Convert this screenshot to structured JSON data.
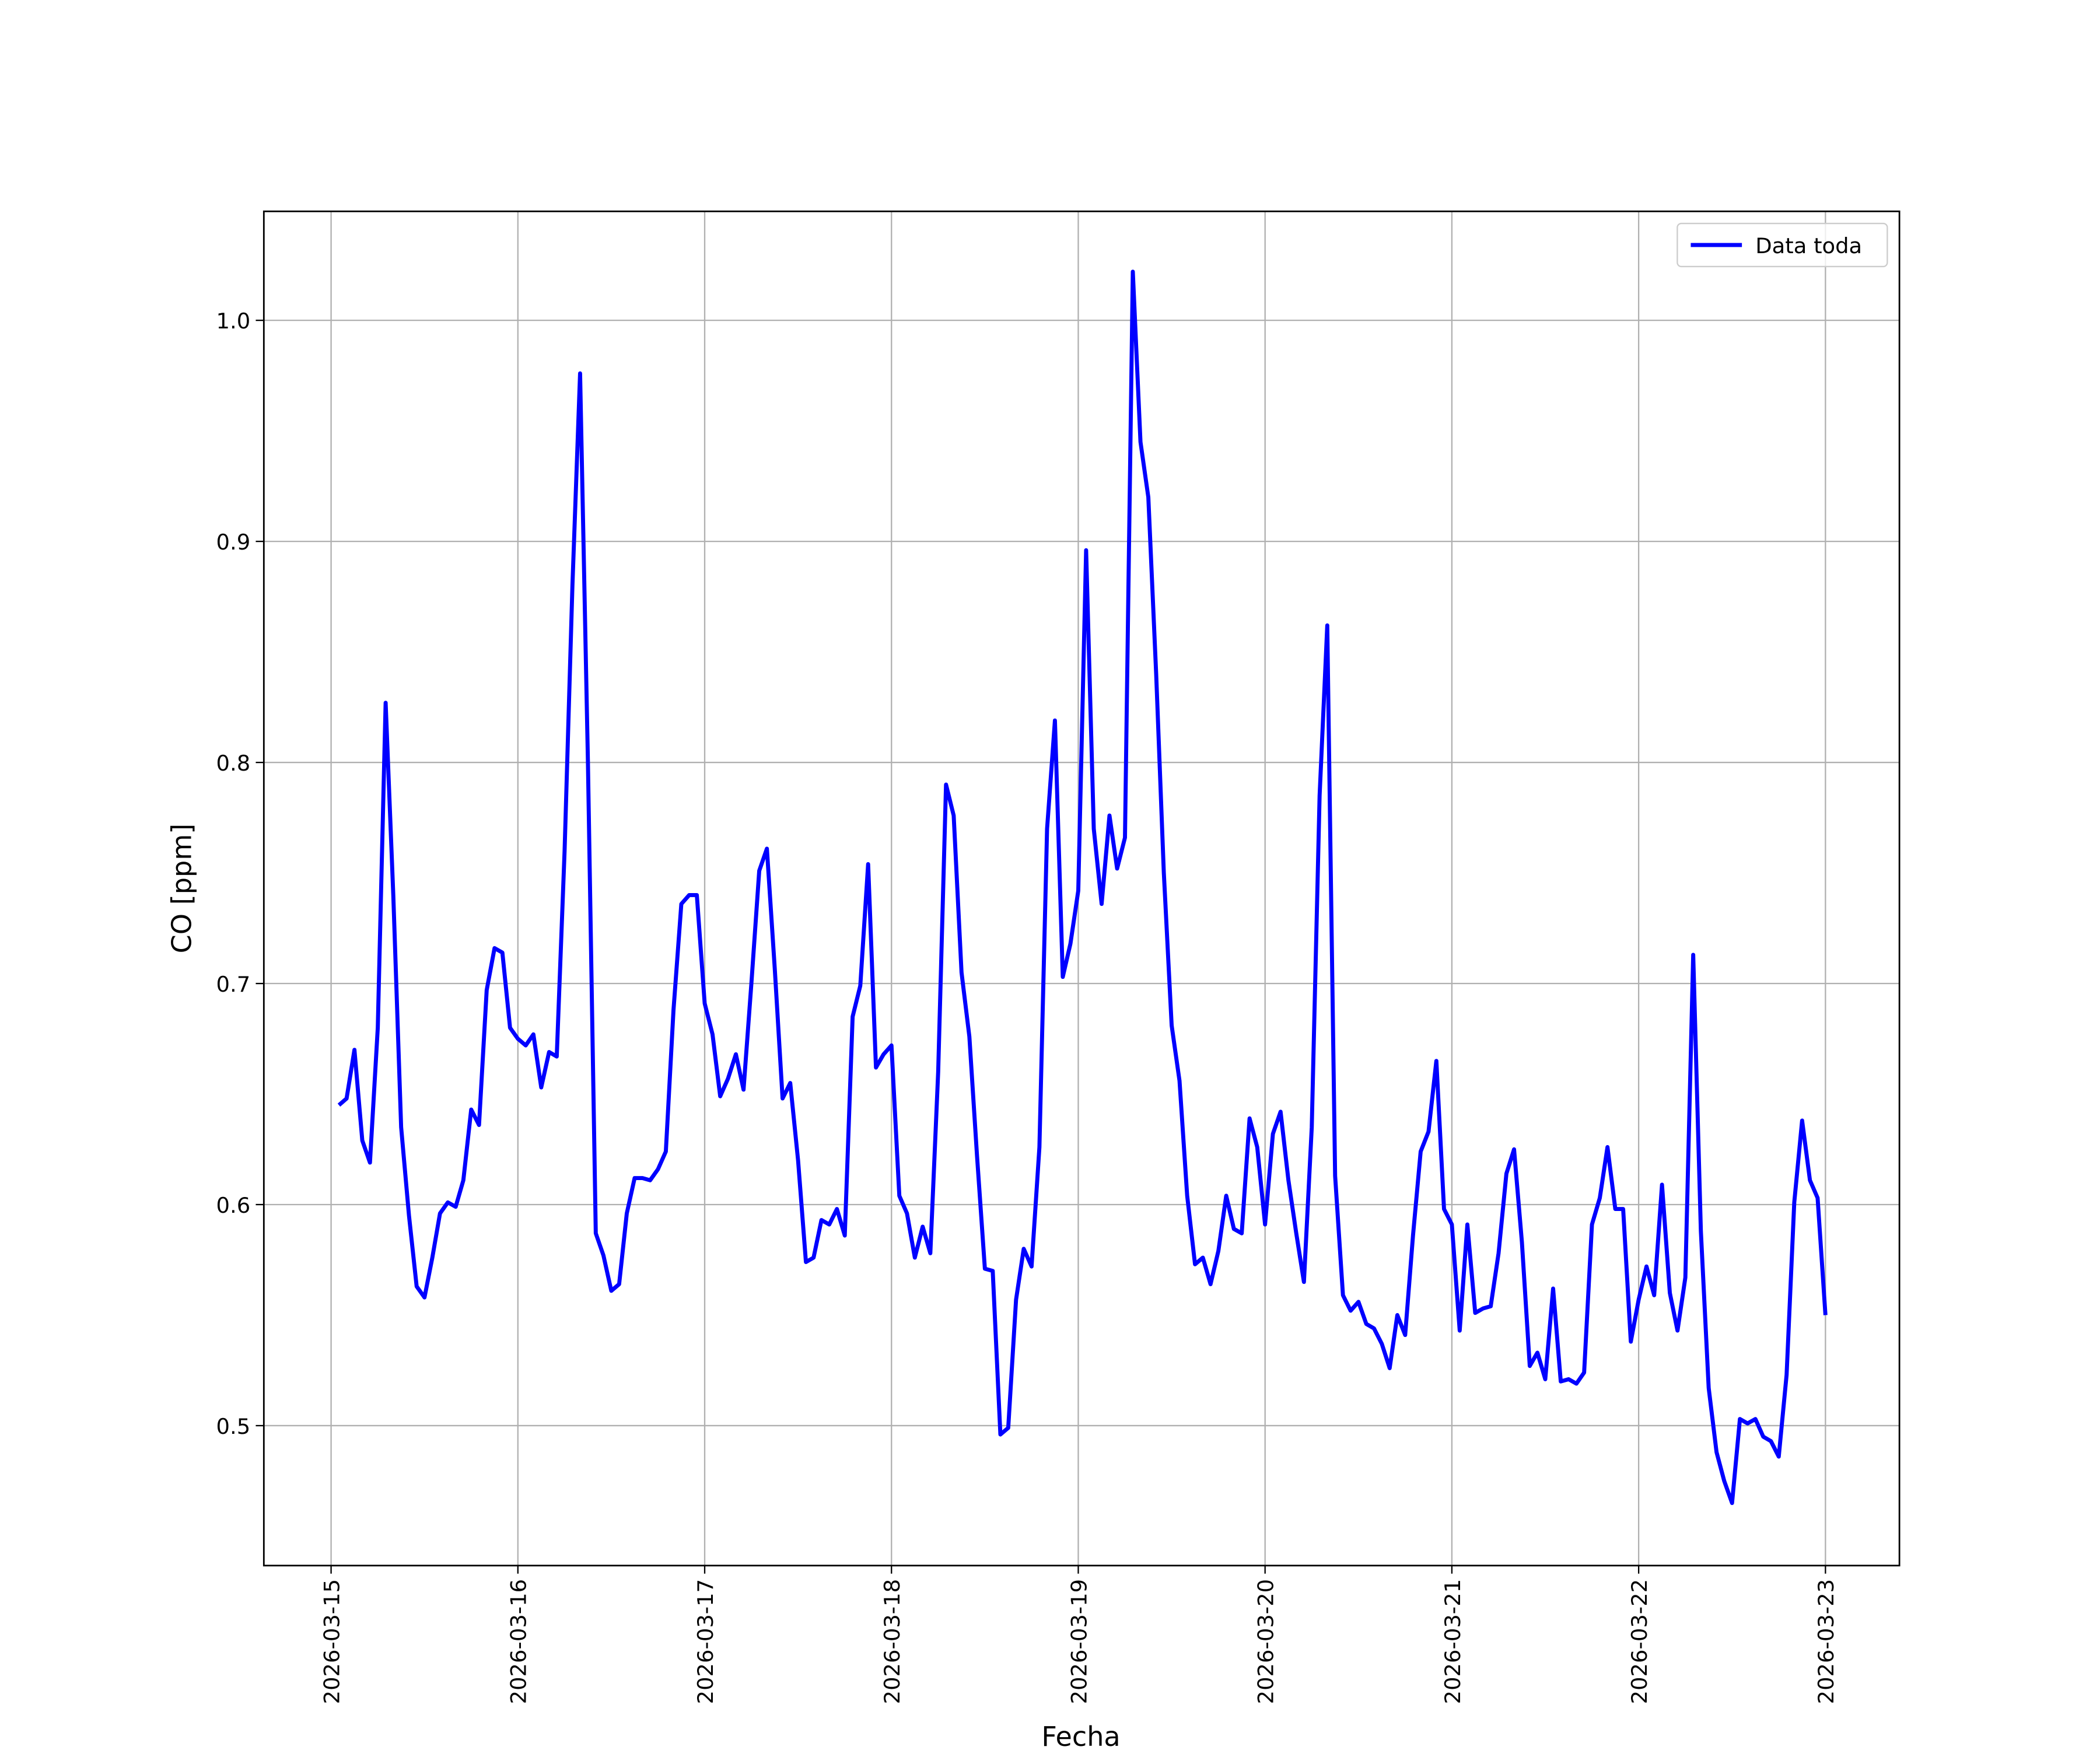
{
  "chart_data": {
    "type": "line",
    "xlabel": "Fecha",
    "ylabel": "CO [ppm]",
    "x": [
      0.042,
      0.083,
      0.125,
      0.167,
      0.208,
      0.25,
      0.292,
      0.333,
      0.375,
      0.417,
      0.458,
      0.5,
      0.542,
      0.583,
      0.625,
      0.667,
      0.708,
      0.75,
      0.792,
      0.833,
      0.875,
      0.917,
      0.958,
      1,
      1.042,
      1.083,
      1.125,
      1.167,
      1.208,
      1.25,
      1.292,
      1.333,
      1.375,
      1.417,
      1.458,
      1.5,
      1.542,
      1.583,
      1.625,
      1.667,
      1.708,
      1.75,
      1.792,
      1.833,
      1.875,
      1.917,
      1.958,
      2,
      2.042,
      2.083,
      2.125,
      2.167,
      2.208,
      2.25,
      2.292,
      2.333,
      2.375,
      2.417,
      2.458,
      2.5,
      2.542,
      2.583,
      2.625,
      2.667,
      2.708,
      2.75,
      2.792,
      2.833,
      2.875,
      2.917,
      2.958,
      3,
      3.042,
      3.083,
      3.125,
      3.167,
      3.208,
      3.25,
      3.292,
      3.333,
      3.375,
      3.417,
      3.458,
      3.5,
      3.542,
      3.583,
      3.625,
      3.667,
      3.708,
      3.75,
      3.792,
      3.833,
      3.875,
      3.917,
      3.958,
      4,
      4.042,
      4.083,
      4.125,
      4.167,
      4.208,
      4.25,
      4.292,
      4.333,
      4.375,
      4.417,
      4.458,
      4.5,
      4.542,
      4.583,
      4.625,
      4.667,
      4.708,
      4.75,
      4.792,
      4.833,
      4.875,
      4.917,
      4.958,
      5,
      5.042,
      5.083,
      5.125,
      5.167,
      5.208,
      5.25,
      5.292,
      5.333,
      5.375,
      5.417,
      5.458,
      5.5,
      5.542,
      5.583,
      5.625,
      5.667,
      5.708,
      5.75,
      5.792,
      5.833,
      5.875,
      5.917,
      5.958,
      6,
      6.042,
      6.083,
      6.125,
      6.167,
      6.208,
      6.25,
      6.292,
      6.333,
      6.375,
      6.417,
      6.458,
      6.5,
      6.542,
      6.583,
      6.625,
      6.667,
      6.708,
      6.75,
      6.792,
      6.833,
      6.875,
      6.917,
      6.958,
      7,
      7.042,
      7.083,
      7.125,
      7.167,
      7.208,
      7.25,
      7.292,
      7.333,
      7.375,
      7.417,
      7.458,
      7.5,
      7.542,
      7.583,
      7.625,
      7.667,
      7.708,
      7.75,
      7.792,
      7.833,
      7.875,
      7.917,
      7.958,
      8
    ],
    "series": [
      {
        "name": "Data toda",
        "color": "#0000ff",
        "values": [
          0.645,
          0.648,
          0.67,
          0.629,
          0.619,
          0.68,
          0.827,
          0.74,
          0.635,
          0.595,
          0.563,
          0.558,
          0.576,
          0.596,
          0.601,
          0.599,
          0.611,
          0.643,
          0.636,
          0.697,
          0.716,
          0.714,
          0.68,
          0.675,
          0.672,
          0.677,
          0.653,
          0.669,
          0.667,
          0.76,
          0.88,
          0.976,
          0.8,
          0.587,
          0.577,
          0.561,
          0.564,
          0.596,
          0.612,
          0.612,
          0.611,
          0.616,
          0.624,
          0.688,
          0.736,
          0.74,
          0.74,
          0.691,
          0.677,
          0.649,
          0.657,
          0.668,
          0.652,
          0.7,
          0.751,
          0.761,
          0.707,
          0.648,
          0.655,
          0.62,
          0.574,
          0.576,
          0.593,
          0.591,
          0.598,
          0.586,
          0.685,
          0.699,
          0.754,
          0.662,
          0.668,
          0.672,
          0.604,
          0.596,
          0.576,
          0.59,
          0.578,
          0.66,
          0.79,
          0.776,
          0.705,
          0.676,
          0.622,
          0.571,
          0.57,
          0.496,
          0.499,
          0.557,
          0.58,
          0.572,
          0.626,
          0.77,
          0.819,
          0.703,
          0.718,
          0.742,
          0.896,
          0.77,
          0.736,
          0.776,
          0.752,
          0.766,
          1.022,
          0.945,
          0.92,
          0.84,
          0.75,
          0.681,
          0.656,
          0.604,
          0.573,
          0.576,
          0.564,
          0.579,
          0.604,
          0.589,
          0.587,
          0.639,
          0.626,
          0.591,
          0.632,
          0.642,
          0.611,
          0.587,
          0.565,
          0.635,
          0.785,
          0.862,
          0.613,
          0.559,
          0.552,
          0.556,
          0.546,
          0.544,
          0.537,
          0.526,
          0.55,
          0.541,
          0.586,
          0.624,
          0.633,
          0.665,
          0.598,
          0.591,
          0.543,
          0.591,
          0.551,
          0.553,
          0.554,
          0.578,
          0.614,
          0.625,
          0.583,
          0.527,
          0.533,
          0.521,
          0.562,
          0.52,
          0.521,
          0.519,
          0.524,
          0.591,
          0.603,
          0.626,
          0.598,
          0.598,
          0.538,
          0.557,
          0.572,
          0.559,
          0.609,
          0.56,
          0.543,
          0.567,
          0.713,
          0.588,
          0.517,
          0.488,
          0.475,
          0.465,
          0.503,
          0.501,
          0.503,
          0.495,
          0.493,
          0.486,
          0.523,
          0.601,
          0.638,
          0.611,
          0.603,
          0.55
        ]
      }
    ],
    "xlim": [
      -0.36,
      8.396
    ],
    "xticks": [
      {
        "value": 0,
        "label": "2026-03-15"
      },
      {
        "value": 1,
        "label": "2026-03-16"
      },
      {
        "value": 2,
        "label": "2026-03-17"
      },
      {
        "value": 3,
        "label": "2026-03-18"
      },
      {
        "value": 4,
        "label": "2026-03-19"
      },
      {
        "value": 5,
        "label": "2026-03-20"
      },
      {
        "value": 6,
        "label": "2026-03-21"
      },
      {
        "value": 7,
        "label": "2026-03-22"
      },
      {
        "value": 8,
        "label": "2026-03-23"
      }
    ],
    "ylim": [
      0.4367,
      1.0493
    ],
    "yticks": [
      0.5,
      0.6,
      0.7,
      0.8,
      0.9,
      {
        "value": 1,
        "label": "1.0"
      }
    ],
    "grid": true,
    "legend": "upper-right"
  }
}
